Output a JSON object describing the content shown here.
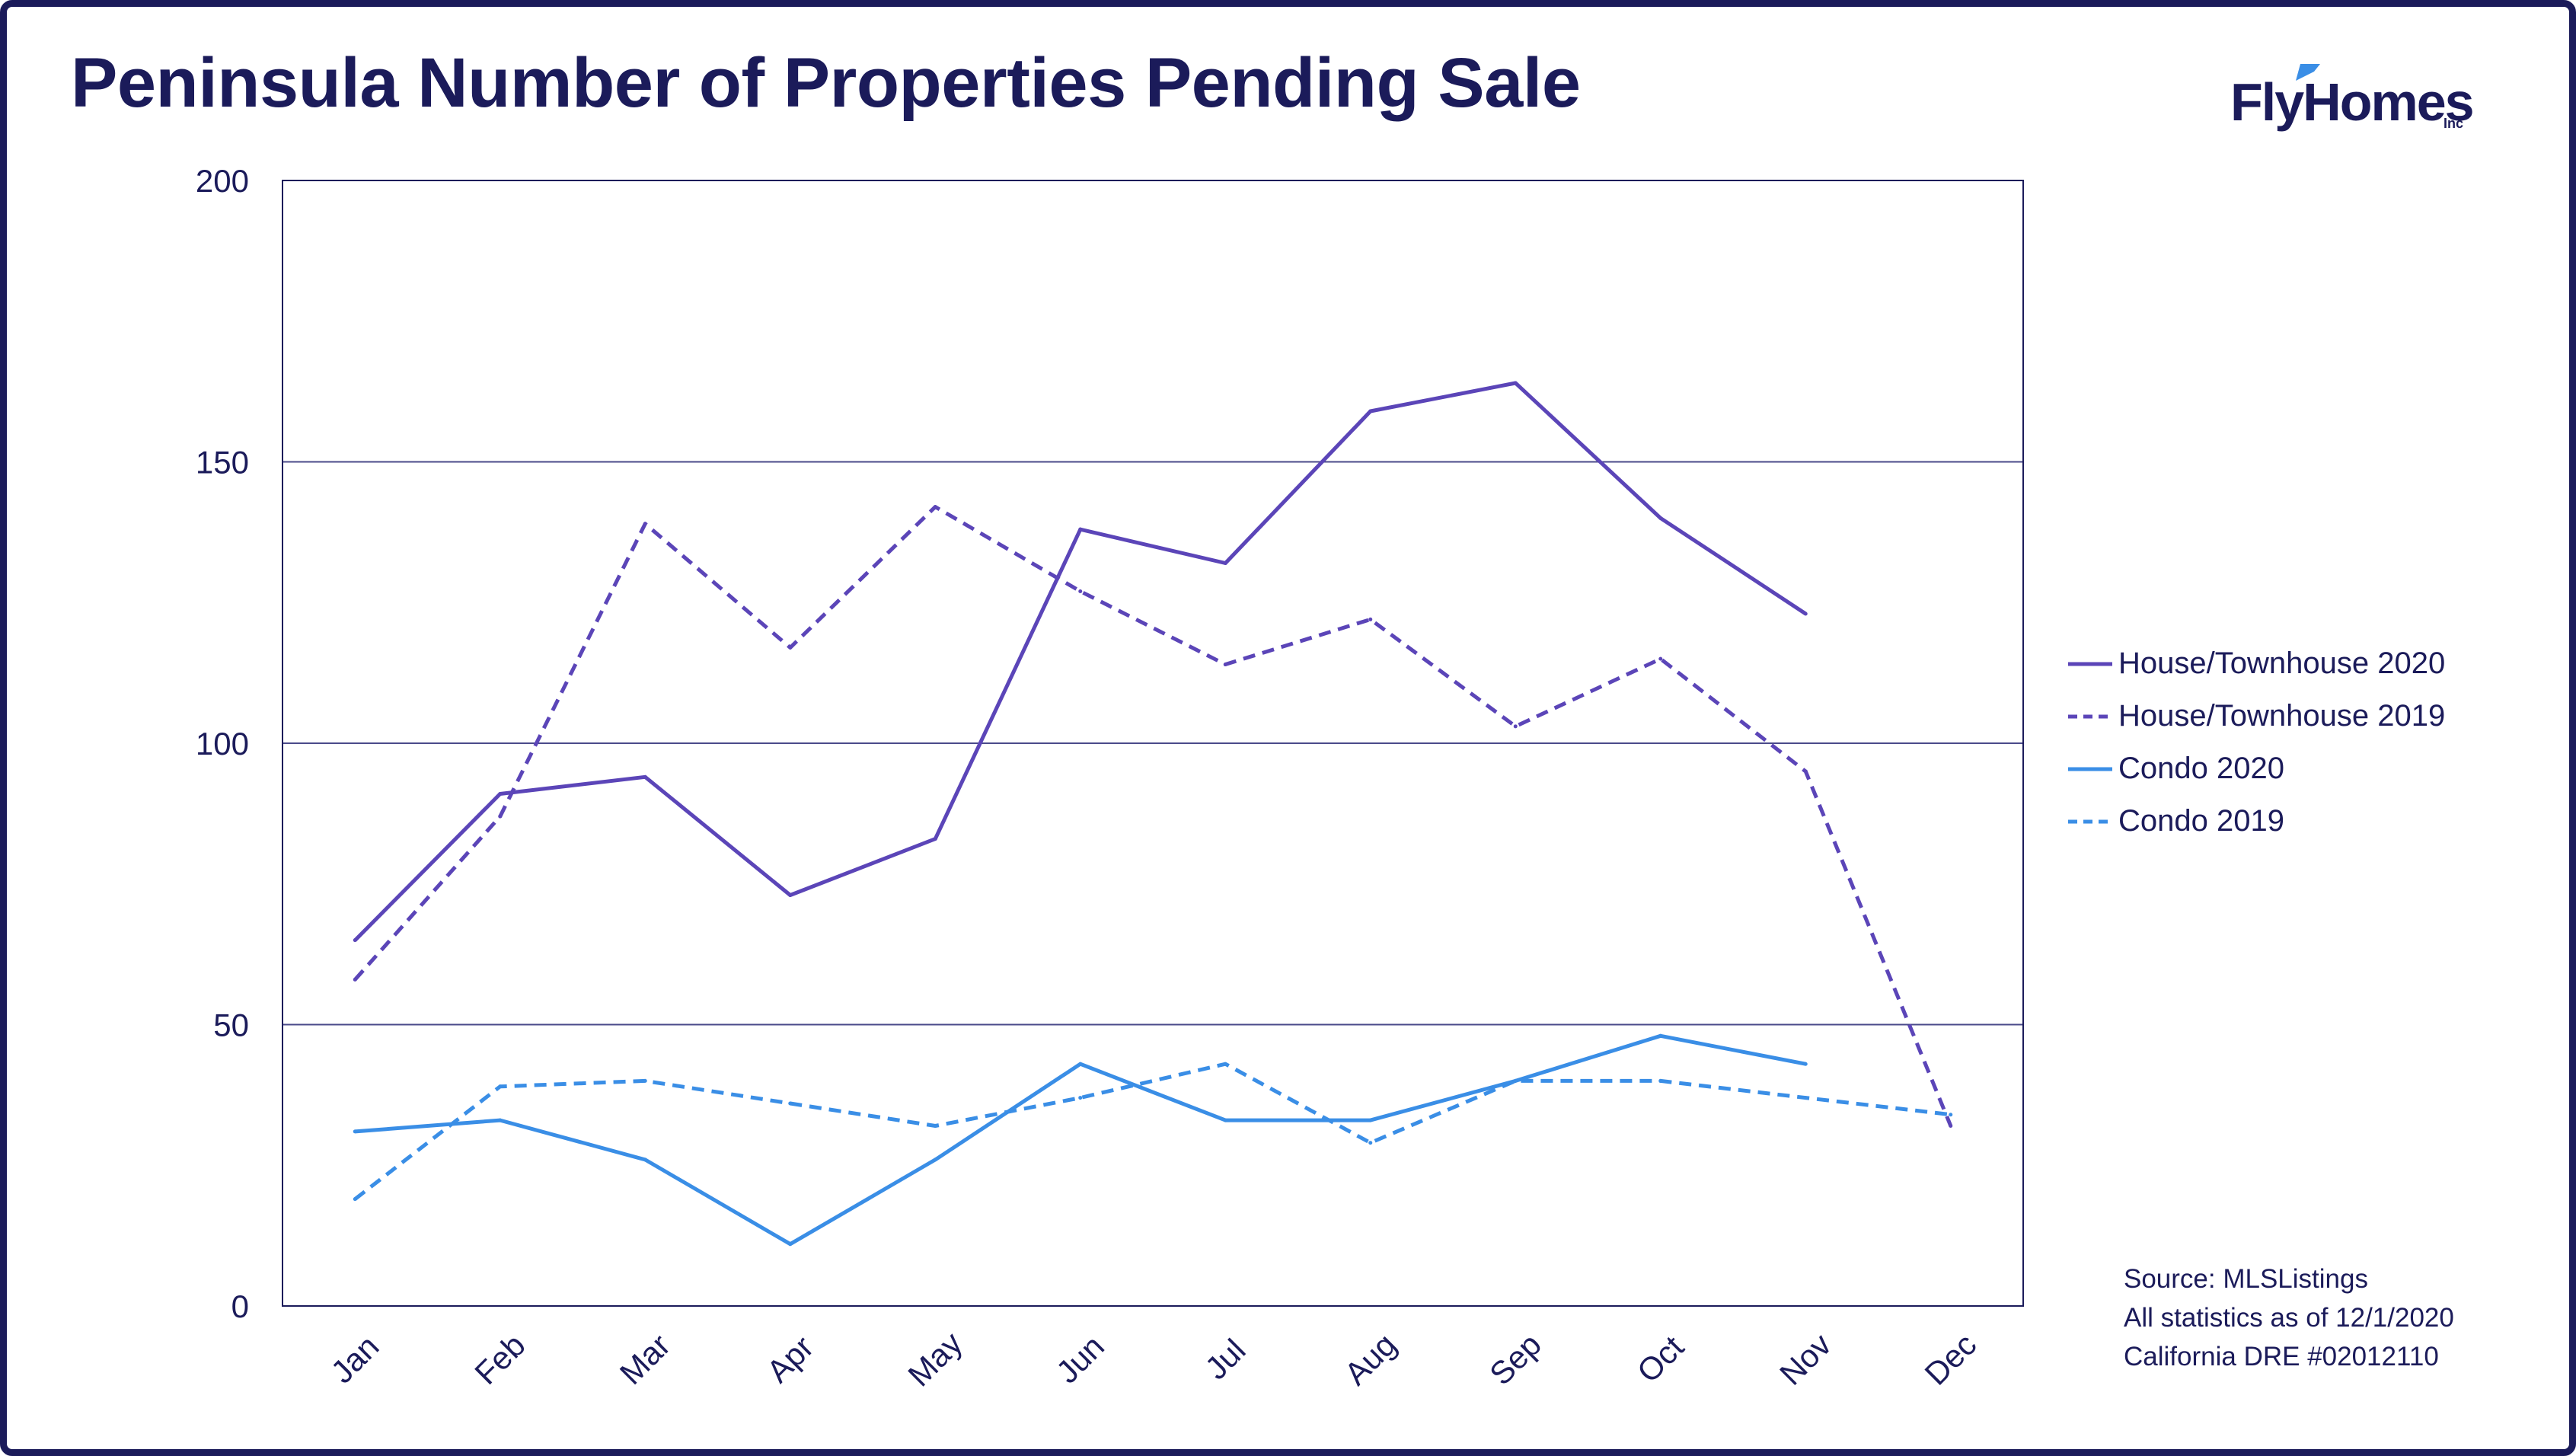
{
  "title": "Peninsula Number of Properties Pending Sale",
  "logo": {
    "text": "FlyHomes",
    "suffix": "Inc",
    "color": "#1b1b5a",
    "accent": "#3a8ee6"
  },
  "source_lines": [
    "Source: MLSListings",
    "All statistics as of 12/1/2020",
    "California DRE #02012110"
  ],
  "colors": {
    "purple": "#5b45b8",
    "blue": "#3a8ee6",
    "text": "#1b1b5a",
    "grid": "#4a4a8a"
  },
  "chart_data": {
    "type": "line",
    "categories": [
      "Jan",
      "Feb",
      "Mar",
      "Apr",
      "May",
      "Jun",
      "Jul",
      "Aug",
      "Sep",
      "Oct",
      "Nov",
      "Dec"
    ],
    "ylim": [
      0,
      200
    ],
    "yticks": [
      0,
      50,
      100,
      150,
      200
    ],
    "grid": true,
    "legend_position": "right",
    "series": [
      {
        "name": "House/Townhouse 2020",
        "color": "#5b45b8",
        "dash": false,
        "values": [
          65,
          91,
          94,
          73,
          83,
          138,
          132,
          159,
          164,
          140,
          123,
          null
        ]
      },
      {
        "name": "House/Townhouse 2019",
        "color": "#5b45b8",
        "dash": true,
        "values": [
          58,
          87,
          139,
          117,
          142,
          127,
          114,
          122,
          103,
          115,
          95,
          32
        ]
      },
      {
        "name": "Condo 2020",
        "color": "#3a8ee6",
        "dash": false,
        "values": [
          31,
          33,
          26,
          11,
          26,
          43,
          33,
          33,
          40,
          48,
          43,
          null
        ]
      },
      {
        "name": "Condo 2019",
        "color": "#3a8ee6",
        "dash": true,
        "values": [
          19,
          39,
          40,
          36,
          32,
          37,
          43,
          29,
          40,
          40,
          37,
          34
        ]
      }
    ]
  }
}
